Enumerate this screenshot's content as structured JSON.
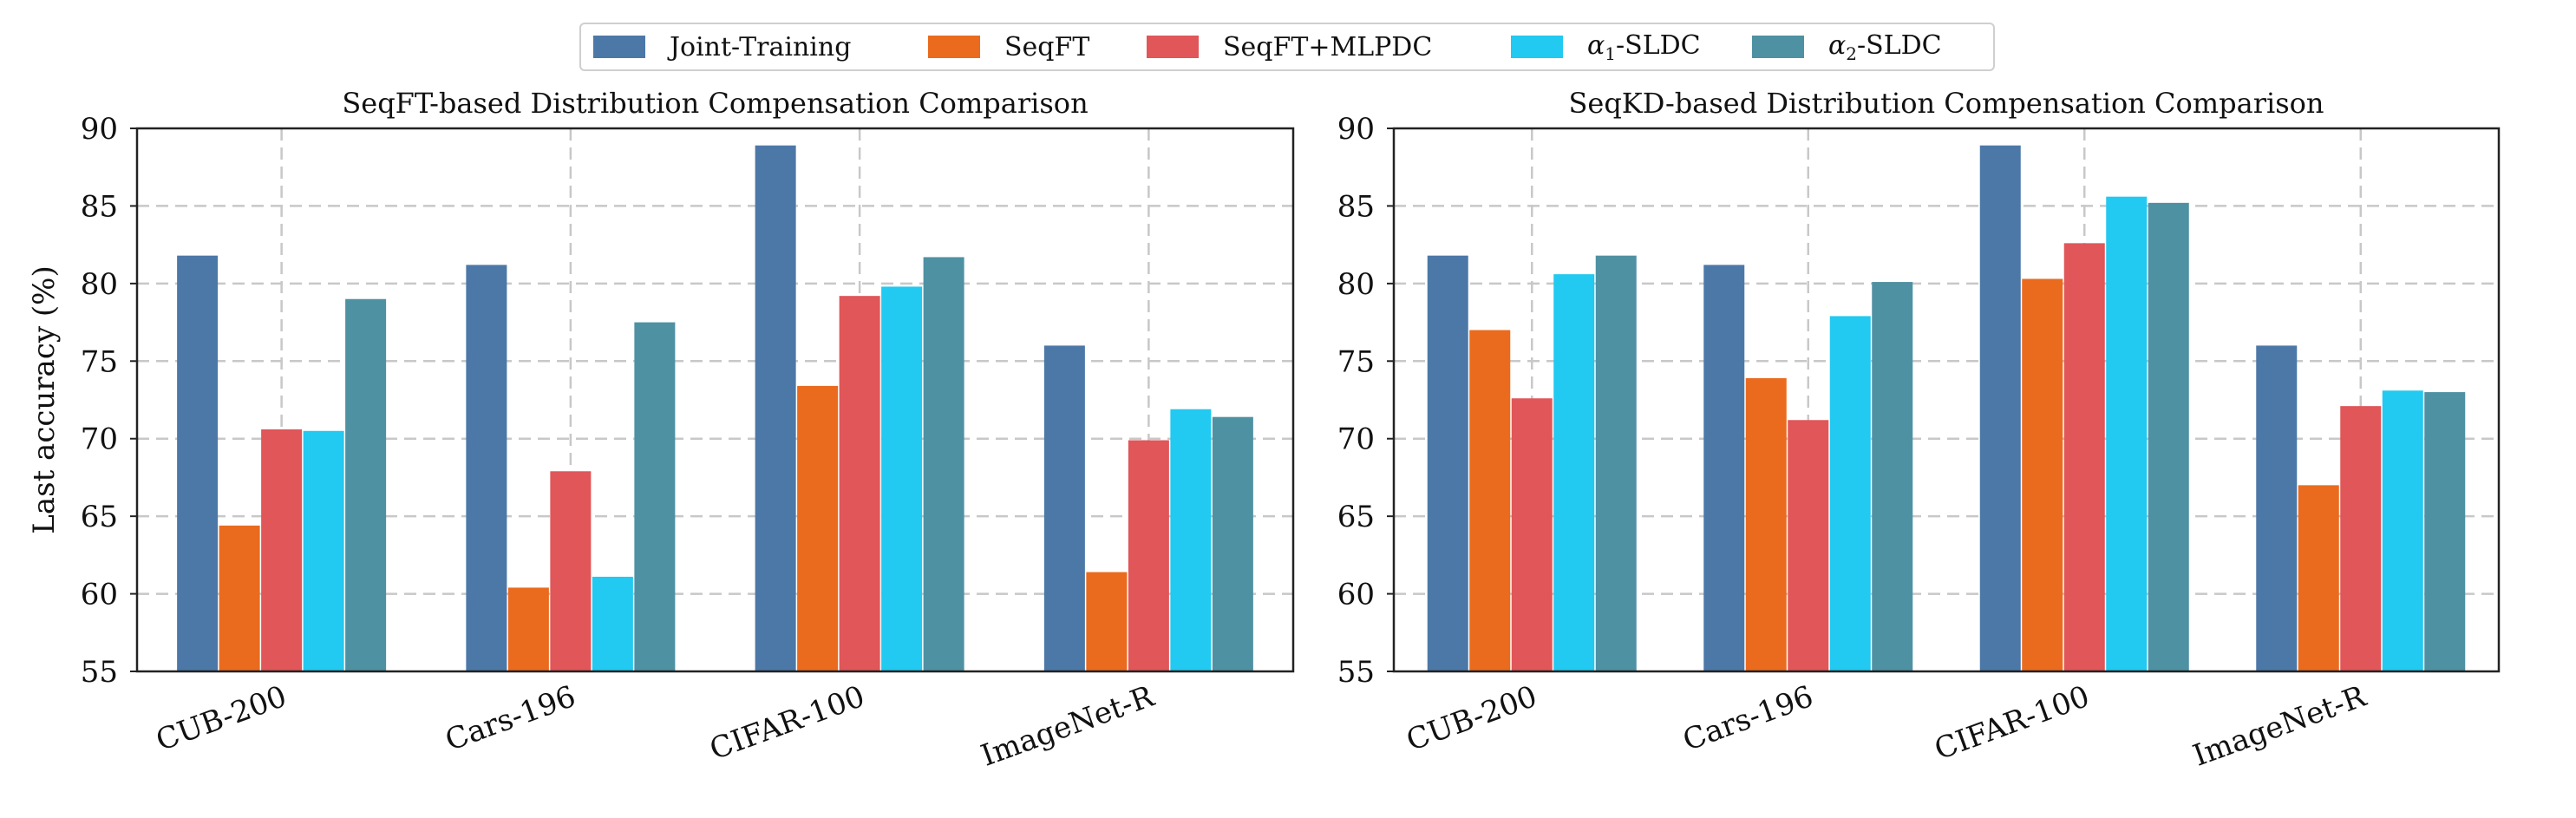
{
  "legend": {
    "items": [
      {
        "label": "Joint-Training",
        "color": "#4c78a8"
      },
      {
        "label": "SeqFT",
        "color": "#ea6b1e"
      },
      {
        "label": "SeqFT+MLPDC",
        "color": "#e05659"
      },
      {
        "label": "α1-SLDC",
        "color": "#22c9f0"
      },
      {
        "label": "α2-SLDC",
        "color": "#4e91a3"
      }
    ]
  },
  "chart_data": [
    {
      "type": "bar",
      "title": "SeqFT-based Distribution Compensation Comparison",
      "xlabel": "",
      "ylabel": "Last accuracy (%)",
      "ylim": [
        55,
        90
      ],
      "yticks": [
        "55",
        "60",
        "65",
        "70",
        "75",
        "80",
        "85",
        "90"
      ],
      "grid": true,
      "categories": [
        "CUB-200",
        "Cars-196",
        "CIFAR-100",
        "ImageNet-R"
      ],
      "series": [
        {
          "name": "Joint-Training",
          "values": [
            81.8,
            81.2,
            88.9,
            76.0
          ]
        },
        {
          "name": "SeqFT",
          "values": [
            64.4,
            60.4,
            73.4,
            61.4
          ]
        },
        {
          "name": "SeqFT+MLPDC",
          "values": [
            70.6,
            67.9,
            79.2,
            69.9
          ]
        },
        {
          "name": "α1-SLDC",
          "values": [
            70.5,
            61.1,
            79.8,
            71.9
          ]
        },
        {
          "name": "α2-SLDC",
          "values": [
            79.0,
            77.5,
            81.7,
            71.4
          ]
        }
      ]
    },
    {
      "type": "bar",
      "title": "SeqKD-based Distribution Compensation Comparison",
      "xlabel": "",
      "ylabel": "",
      "ylim": [
        55,
        90
      ],
      "yticks": [
        "55",
        "60",
        "65",
        "70",
        "75",
        "80",
        "85",
        "90"
      ],
      "grid": true,
      "categories": [
        "CUB-200",
        "Cars-196",
        "CIFAR-100",
        "ImageNet-R"
      ],
      "series": [
        {
          "name": "Joint-Training",
          "values": [
            81.8,
            81.2,
            88.9,
            76.0
          ]
        },
        {
          "name": "SeqFT",
          "values": [
            77.0,
            73.9,
            80.3,
            67.0
          ]
        },
        {
          "name": "SeqFT+MLPDC",
          "values": [
            72.6,
            71.2,
            82.6,
            72.1
          ]
        },
        {
          "name": "α1-SLDC",
          "values": [
            80.6,
            77.9,
            85.6,
            73.1
          ]
        },
        {
          "name": "α2-SLDC",
          "values": [
            81.8,
            80.1,
            85.2,
            73.0
          ]
        }
      ]
    }
  ]
}
